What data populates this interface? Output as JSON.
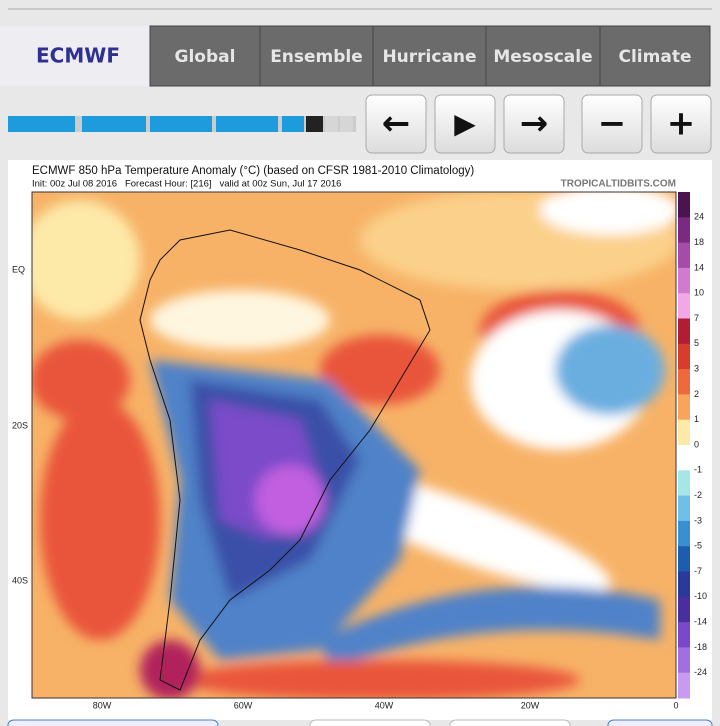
{
  "nav": {
    "brand": "ECMWF",
    "tabs": [
      "Global",
      "Ensemble",
      "Hurricane",
      "Mesoscale",
      "Climate"
    ]
  },
  "controls": {
    "prev": "←",
    "play": "▶",
    "next": "→",
    "minus": "−",
    "plus": "+"
  },
  "map": {
    "title": "ECMWF 850 hPa Temperature Anomaly (°C) (based on CFSR 1981-2010 Climatology)",
    "subtitle": "Init: 00z Jul 08 2016   Forecast Hour: [216]   valid at 00z Sun, Jul 17 2016",
    "credit": "TROPICALTIDBITS.COM",
    "lat_labels": [
      "EQ",
      "20S",
      "40S"
    ],
    "lon_labels": [
      "80W",
      "60W",
      "40W",
      "20W",
      "0"
    ],
    "colorbar_labels": [
      "24",
      "18",
      "14",
      "10",
      "7",
      "5",
      "3",
      "2",
      "1",
      "0",
      "-1",
      "-2",
      "-3",
      "-5",
      "-7",
      "-10",
      "-14",
      "-18",
      "-24"
    ]
  }
}
